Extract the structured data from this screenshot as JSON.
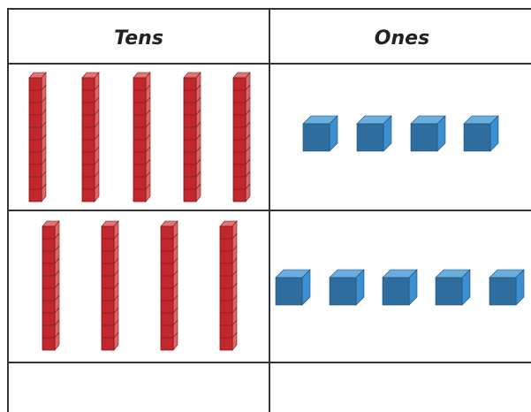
{
  "table": {
    "headers": [
      "Tens",
      "Ones"
    ]
  }
}
